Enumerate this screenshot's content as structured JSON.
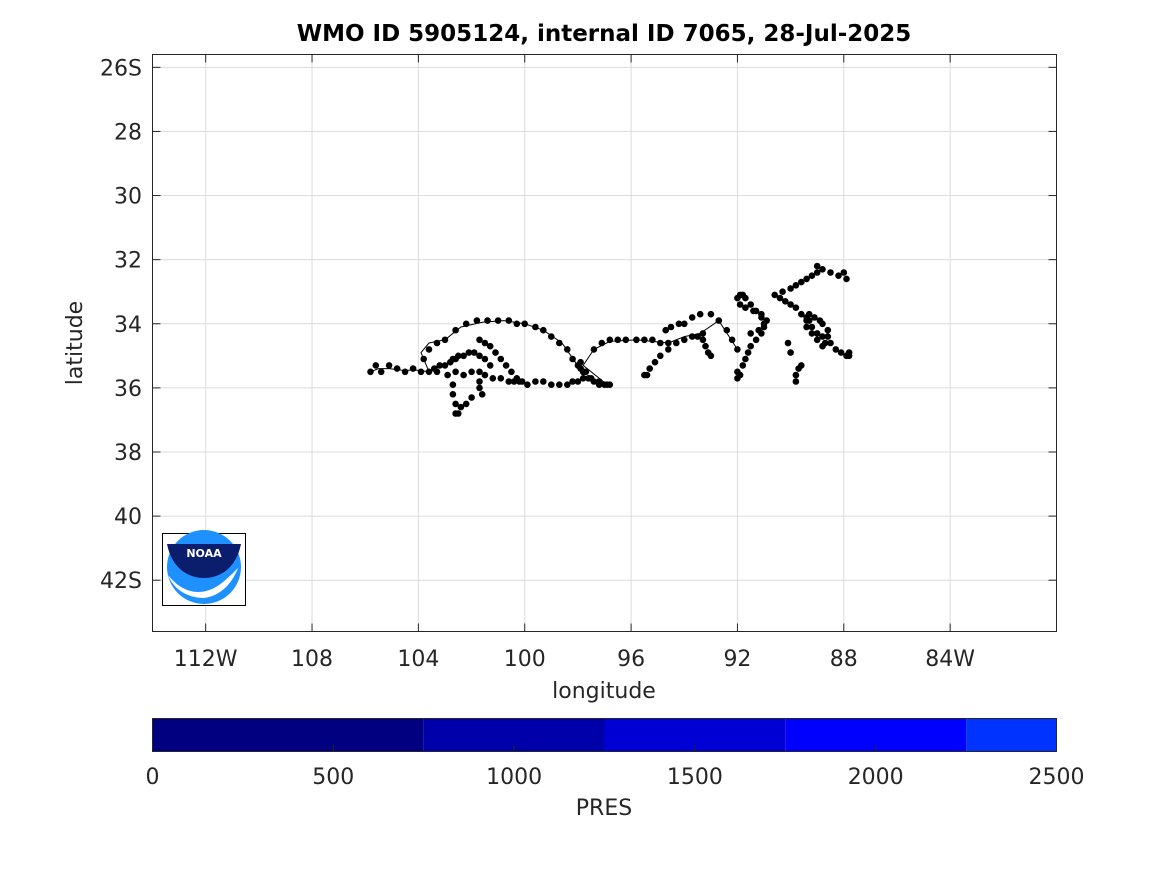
{
  "chart_data": {
    "type": "scatter",
    "title": "WMO ID 5905124, internal ID 7065, 28-Jul-2025",
    "xlabel": "longitude",
    "ylabel": "latitude",
    "x_units": "degrees longitude (negative = West)",
    "y_units": "degrees latitude (negative = South)",
    "xlim": [
      -114,
      -80
    ],
    "ylim": [
      -43.6,
      -25.6
    ],
    "x_ticks": [
      -112,
      -108,
      -104,
      -100,
      -96,
      -92,
      -88,
      -84
    ],
    "x_tick_labels": [
      "112W",
      "108",
      "104",
      "100",
      "96",
      "92",
      "88",
      "84W"
    ],
    "y_ticks": [
      -26,
      -28,
      -30,
      -32,
      -34,
      -36,
      -38,
      -40,
      -42
    ],
    "y_tick_labels": [
      "26S",
      "28",
      "30",
      "32",
      "34",
      "36",
      "38",
      "40",
      "42S"
    ],
    "grid": true,
    "marker_color": "#000000",
    "track_color": "#000000",
    "series": [
      {
        "x": [
          -105.8,
          -105.6,
          -105.4,
          -105.1,
          -104.8,
          -104.5,
          -104.2,
          -103.9,
          -103.6,
          -103.3,
          -103.8,
          -103.6,
          -103.3,
          -103.0,
          -102.6,
          -102.2,
          -101.8,
          -101.4,
          -101.0,
          -100.6,
          -100.3,
          -100.0,
          -99.6,
          -99.3,
          -99.0,
          -98.7,
          -98.4,
          -98.2,
          -98.0,
          -97.8,
          -97.6,
          -97.4,
          -97.2,
          -96.9,
          -103.4,
          -103.2,
          -103.0,
          -102.8,
          -102.7,
          -102.6,
          -102.5,
          -102.3,
          -102.1,
          -101.9,
          -101.7,
          -101.5,
          -101.3,
          -102.9,
          -102.6,
          -102.3,
          -102.0,
          -101.7,
          -101.5,
          -101.2,
          -100.9,
          -100.6,
          -100.4,
          -100.2,
          -101.7,
          -101.5,
          -101.3,
          -101.1,
          -100.9,
          -100.7,
          -100.5,
          -100.3,
          -100.1,
          -99.9,
          -102.7,
          -102.7,
          -102.6,
          -102.6,
          -102.5,
          -102.4,
          -102.2,
          -102.0,
          -101.7,
          -101.7,
          -101.6,
          -99.6,
          -99.3,
          -99.0,
          -98.7,
          -98.4,
          -98.2,
          -98.0,
          -97.8,
          -97.5,
          -97.2,
          -97.0,
          -96.8,
          -97.9,
          -97.9,
          -97.8,
          -97.7,
          -97.4,
          -97.1,
          -96.8,
          -96.5,
          -96.2,
          -95.8,
          -95.5,
          -95.2,
          -94.9,
          -94.6,
          -95.5,
          -95.4,
          -95.3,
          -95.1,
          -94.9,
          -94.6,
          -94.3,
          -94.0,
          -93.7,
          -93.5,
          -93.3,
          -93.3,
          -93.2,
          -93.1,
          -93.0,
          -94.7,
          -94.5,
          -94.2,
          -94.0,
          -93.7,
          -93.4,
          -93.0,
          -92.7,
          -92.4,
          -92.2,
          -92.0,
          -92.0,
          -92.0,
          -91.9,
          -91.8,
          -91.7,
          -91.6,
          -91.5,
          -91.3,
          -91.1,
          -91.0,
          -90.9,
          -91.1,
          -91.4,
          -91.7,
          -91.9,
          -92.0,
          -91.9,
          -91.8,
          -91.7,
          -91.5,
          -91.3,
          -91.1,
          -91.0,
          -91.2,
          -91.5,
          -90.1,
          -90.0,
          -89.8,
          -89.8,
          -89.7,
          -89.6,
          -89.3,
          -89.4,
          -89.6,
          -89.8,
          -90.0,
          -90.2,
          -90.4,
          -90.6,
          -90.3,
          -90.0,
          -89.8,
          -89.6,
          -89.4,
          -89.2,
          -89.0,
          -89.4,
          -89.2,
          -89.0,
          -88.8,
          -88.7,
          -88.6,
          -88.6,
          -88.8,
          -88.9,
          -89.1,
          -89.3,
          -89.0,
          -88.8,
          -88.5,
          -88.2,
          -88.0,
          -87.9,
          -87.8,
          -87.8,
          -87.9,
          -88.1,
          -88.3,
          -88.5,
          -88.8,
          -89.0,
          -89.2,
          -89.4
        ],
        "y": [
          -35.5,
          -35.3,
          -35.5,
          -35.3,
          -35.4,
          -35.5,
          -35.4,
          -35.5,
          -35.5,
          -35.5,
          -35.1,
          -34.8,
          -34.6,
          -34.5,
          -34.2,
          -34.0,
          -33.9,
          -33.9,
          -33.9,
          -33.9,
          -34.0,
          -34.0,
          -34.1,
          -34.2,
          -34.4,
          -34.6,
          -34.8,
          -35.1,
          -35.3,
          -35.5,
          -35.7,
          -35.8,
          -35.9,
          -35.9,
          -35.4,
          -35.3,
          -35.3,
          -35.2,
          -35.1,
          -35.1,
          -35.0,
          -35.0,
          -34.9,
          -34.9,
          -35.0,
          -35.1,
          -35.3,
          -35.6,
          -35.5,
          -35.6,
          -35.5,
          -35.5,
          -35.6,
          -35.7,
          -35.7,
          -35.8,
          -35.8,
          -35.8,
          -34.5,
          -34.6,
          -34.7,
          -34.9,
          -35.1,
          -35.3,
          -35.5,
          -35.7,
          -35.8,
          -35.9,
          -35.9,
          -36.2,
          -36.5,
          -36.8,
          -36.8,
          -36.6,
          -36.5,
          -36.3,
          -35.8,
          -36.0,
          -36.2,
          -35.8,
          -35.8,
          -35.9,
          -35.9,
          -35.9,
          -35.8,
          -35.8,
          -35.7,
          -35.7,
          -35.8,
          -35.9,
          -35.9,
          -35.2,
          -35.4,
          -35.5,
          -35.5,
          -34.8,
          -34.6,
          -34.5,
          -34.5,
          -34.5,
          -34.5,
          -34.5,
          -34.5,
          -34.6,
          -34.6,
          -35.6,
          -35.6,
          -35.4,
          -35.2,
          -35.0,
          -34.8,
          -34.6,
          -34.5,
          -34.4,
          -34.4,
          -34.3,
          -34.5,
          -34.7,
          -34.9,
          -35.0,
          -34.2,
          -34.1,
          -34.0,
          -34.0,
          -33.8,
          -33.7,
          -33.7,
          -33.9,
          -34.2,
          -34.5,
          -34.8,
          -35.5,
          -35.7,
          -35.6,
          -35.3,
          -35.1,
          -34.9,
          -34.7,
          -34.5,
          -34.3,
          -34.1,
          -33.9,
          -33.7,
          -33.6,
          -33.5,
          -33.4,
          -33.2,
          -33.1,
          -33.1,
          -33.2,
          -33.4,
          -33.6,
          -33.8,
          -34.0,
          -34.2,
          -34.3,
          -34.6,
          -34.9,
          -35.8,
          -35.6,
          -35.4,
          -35.3,
          -33.9,
          -33.8,
          -33.7,
          -33.5,
          -33.4,
          -33.3,
          -33.2,
          -33.1,
          -33.0,
          -32.9,
          -32.8,
          -32.7,
          -32.6,
          -32.5,
          -32.4,
          -34.1,
          -34.3,
          -34.5,
          -34.7,
          -34.6,
          -34.4,
          -34.2,
          -34.0,
          -33.9,
          -33.8,
          -33.7,
          -32.2,
          -32.3,
          -32.4,
          -32.5,
          -32.4,
          -32.6,
          -34.9,
          -35.0,
          -35.0,
          -34.9,
          -34.8,
          -34.6,
          -34.4,
          -34.3,
          -34.1,
          -33.9
        ],
        "track": [
          [
            -105.8,
            -35.5
          ],
          [
            -105.5,
            -35.4
          ],
          [
            -105.1,
            -35.4
          ],
          [
            -104.6,
            -35.45
          ],
          [
            -104.0,
            -35.45
          ],
          [
            -103.6,
            -35.5
          ],
          [
            -103.9,
            -34.9
          ],
          [
            -103.6,
            -34.6
          ],
          [
            -103.0,
            -34.5
          ],
          [
            -102.4,
            -34.1
          ],
          [
            -101.6,
            -33.95
          ],
          [
            -100.8,
            -33.9
          ],
          [
            -100.0,
            -34.0
          ],
          [
            -99.3,
            -34.2
          ],
          [
            -98.6,
            -34.6
          ],
          [
            -98.1,
            -35.2
          ],
          [
            -97.8,
            -35.6
          ],
          [
            -97.4,
            -35.8
          ],
          [
            -96.9,
            -35.9
          ],
          [
            -97.8,
            -35.3
          ],
          [
            -97.4,
            -34.8
          ],
          [
            -96.8,
            -34.55
          ],
          [
            -95.8,
            -34.5
          ],
          [
            -94.6,
            -34.6
          ],
          [
            -94.0,
            -34.4
          ],
          [
            -93.4,
            -34.3
          ],
          [
            -92.7,
            -33.9
          ],
          [
            -92.0,
            -34.8
          ]
        ]
      }
    ]
  },
  "colorbar": {
    "label": "PRES",
    "range": [
      0,
      2500
    ],
    "tick_values": [
      0,
      500,
      1000,
      1500,
      2000,
      2500
    ],
    "tick_labels": [
      "0",
      "500",
      "1000",
      "1500",
      "2000",
      "2500"
    ],
    "segments": [
      {
        "from": 0,
        "to": 750,
        "color": "#000080"
      },
      {
        "from": 750,
        "to": 1250,
        "color": "#0000aa"
      },
      {
        "from": 1250,
        "to": 1750,
        "color": "#0000d4"
      },
      {
        "from": 1750,
        "to": 2250,
        "color": "#0000ff"
      },
      {
        "from": 2250,
        "to": 2500,
        "color": "#0033ff"
      }
    ]
  },
  "logo": {
    "name": "noaa-logo",
    "text": "NOAA",
    "colors": {
      "navy": "#0b1e6e",
      "sky": "#1e90ff",
      "white": "#ffffff"
    }
  }
}
